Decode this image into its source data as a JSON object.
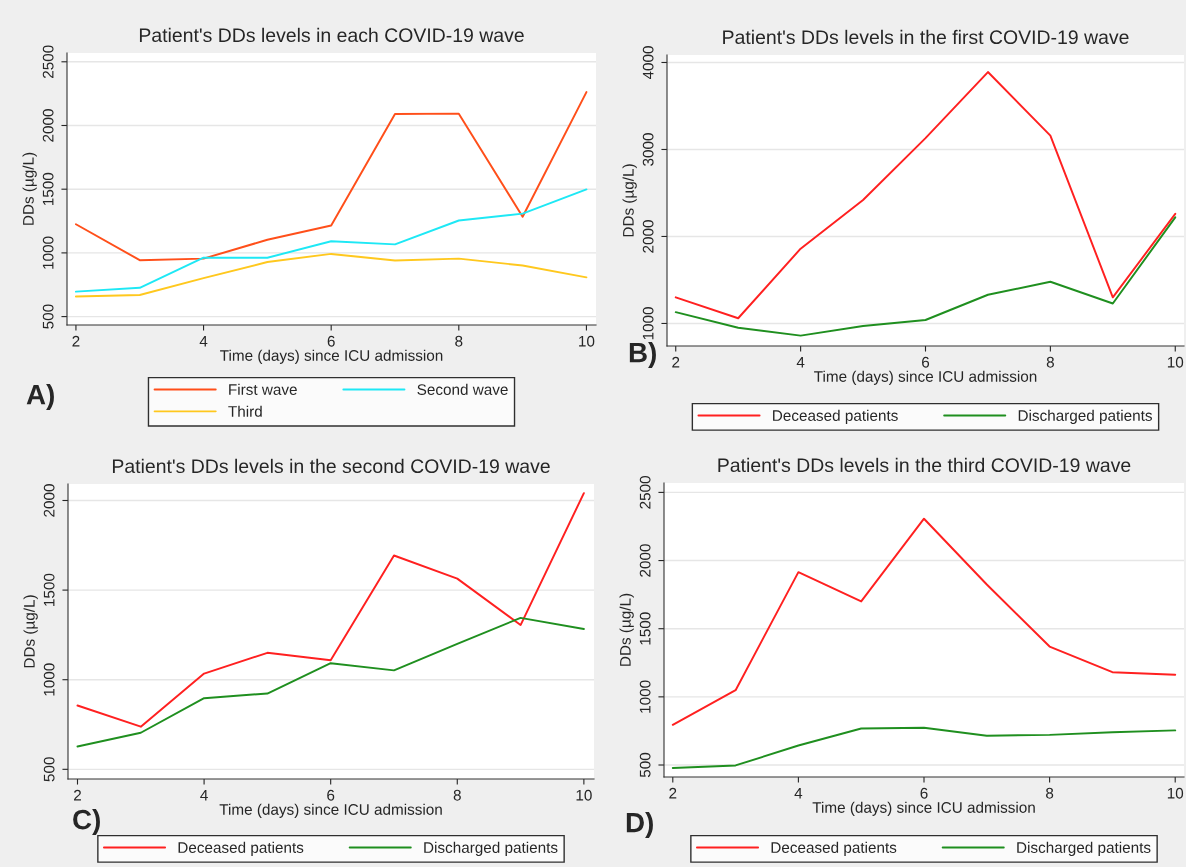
{
  "chart_data": [
    {
      "type": "line",
      "title": "Patient's DDs levels in each COVID-19 wave",
      "xlabel": "Time (days) since ICU admission",
      "ylabel": "DDs (µg/L)",
      "x": [
        2,
        3,
        4,
        5,
        6,
        7,
        8,
        9,
        10
      ],
      "series": [
        {
          "name": "First wave",
          "color": "#ff4f1a",
          "values": [
            1225,
            943,
            955,
            1103,
            1215,
            2090,
            2093,
            1284,
            2262
          ]
        },
        {
          "name": "Second wave",
          "color": "#1ee8f5",
          "values": [
            696,
            726,
            962,
            962,
            1091,
            1067,
            1254,
            1308,
            1498
          ]
        },
        {
          "name": "Third",
          "color": "#ffc81e",
          "values": [
            657,
            669,
            802,
            928,
            992,
            940,
            955,
            901,
            808
          ]
        }
      ],
      "xlim": [
        1.86,
        10.15
      ],
      "xticks": [
        2,
        4,
        6,
        8,
        10
      ],
      "ylim": [
        434,
        2569
      ],
      "yticks": [
        500,
        1000,
        1500,
        2000,
        2500
      ],
      "grid": "y",
      "legend": "bottom",
      "annotations": [
        "A)"
      ]
    },
    {
      "type": "line",
      "title": "Patient's DDs levels in the first COVID-19 wave",
      "xlabel": "Time (days) since ICU admission",
      "ylabel": "DDs (µg/L)",
      "x": [
        2,
        3,
        4,
        5,
        6,
        7,
        8,
        9,
        10
      ],
      "series": [
        {
          "name": "Deceased patients",
          "color": "#ff2020",
          "values": [
            1300,
            1060,
            1860,
            2420,
            3130,
            3890,
            3160,
            1300,
            2260
          ]
        },
        {
          "name": "Discharged patients",
          "color": "#1f8f1f",
          "values": [
            1130,
            950,
            860,
            970,
            1040,
            1330,
            1480,
            1230,
            2220
          ]
        }
      ],
      "xlim": [
        1.86,
        10.14
      ],
      "xticks": [
        2,
        4,
        6,
        8,
        10
      ],
      "ylim": [
        741,
        4086
      ],
      "yticks": [
        1000,
        2000,
        3000,
        4000
      ],
      "grid": "y",
      "legend": "bottom",
      "annotations": [
        "B)"
      ]
    },
    {
      "type": "line",
      "title": "Patient's DDs levels in the second COVID-19 wave",
      "xlabel": "Time (days) since ICU admission",
      "ylabel": "DDs (µg/L)",
      "x": [
        2,
        3,
        4,
        5,
        6,
        7,
        8,
        9,
        10
      ],
      "series": [
        {
          "name": "Deceased patients",
          "color": "#ff2020",
          "values": [
            856,
            738,
            1034,
            1150,
            1109,
            1693,
            1564,
            1305,
            2041
          ]
        },
        {
          "name": "Discharged patients",
          "color": "#1f8f1f",
          "values": [
            627,
            704,
            897,
            923,
            1092,
            1052,
            1200,
            1345,
            1283
          ]
        }
      ],
      "xlim": [
        1.85,
        10.16
      ],
      "xticks": [
        2,
        4,
        6,
        8,
        10
      ],
      "ylim": [
        446,
        2092
      ],
      "yticks": [
        500,
        1000,
        1500,
        2000
      ],
      "grid": "y",
      "legend": "bottom",
      "annotations": [
        "C)"
      ]
    },
    {
      "type": "line",
      "title": "Patient's DDs levels in the third COVID-19 wave",
      "xlabel": "Time (days) since ICU admission",
      "ylabel": "DDs (µg/L)",
      "x": [
        2,
        3,
        4,
        5,
        6,
        7,
        8,
        9,
        10
      ],
      "series": [
        {
          "name": "Deceased patients",
          "color": "#ff2020",
          "values": [
            795,
            1049,
            1915,
            1700,
            2307,
            1824,
            1369,
            1181,
            1162
          ]
        },
        {
          "name": "Discharged patients",
          "color": "#1f8f1f",
          "values": [
            478,
            497,
            643,
            768,
            773,
            715,
            721,
            740,
            754
          ]
        }
      ],
      "xlim": [
        1.86,
        10.14
      ],
      "xticks": [
        2,
        4,
        6,
        8,
        10
      ],
      "ylim": [
        412,
        2569
      ],
      "yticks": [
        500,
        1000,
        1500,
        2000,
        2500
      ],
      "grid": "y",
      "legend": "bottom",
      "annotations": [
        "D)"
      ]
    }
  ]
}
